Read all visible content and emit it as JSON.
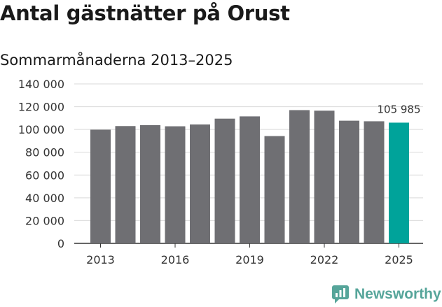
{
  "brand": {
    "name": "Newsworthy"
  },
  "colors": {
    "bar": "#6f6f73",
    "highlight": "#00a39a",
    "grid": "#d9d9d9",
    "axis": "#333333"
  },
  "chart_data": {
    "type": "bar",
    "title": "Antal gästnätter på Orust",
    "subtitle": "Sommarmånaderna 2013–2025",
    "xlabel": "",
    "ylabel": "",
    "categories": [
      "2013",
      "2014",
      "2015",
      "2016",
      "2017",
      "2018",
      "2019",
      "2020",
      "2021",
      "2022",
      "2023",
      "2024",
      "2025"
    ],
    "values": [
      99800,
      103000,
      103800,
      102800,
      104400,
      109500,
      111500,
      94200,
      117000,
      116500,
      107700,
      107200,
      105985
    ],
    "highlight_index": 12,
    "ylim": [
      0,
      140000
    ],
    "yticks": [
      0,
      20000,
      40000,
      60000,
      80000,
      100000,
      120000,
      140000
    ],
    "ytick_labels": [
      "0",
      "20 000",
      "40 000",
      "60 000",
      "80 000",
      "100 000",
      "120 000",
      "140 000"
    ],
    "xtick_labels": [
      "2013",
      "2016",
      "2019",
      "2022",
      "2025"
    ],
    "annotations": [
      {
        "index": 12,
        "text": "105 985"
      }
    ],
    "grid": true,
    "legend": "none"
  }
}
